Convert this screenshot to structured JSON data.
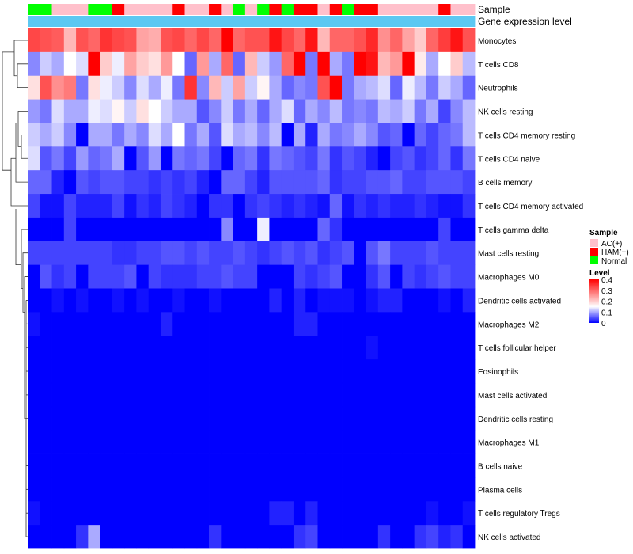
{
  "chart_data": {
    "type": "heatmap",
    "colormap": {
      "low": "#0000ff",
      "mid": "#ffffff",
      "high": "#ff0000",
      "min": 0,
      "mid_value": 0.15,
      "max": 0.4
    },
    "annotation_labels": [
      "Sample",
      "Gene expression level"
    ],
    "sample_annotation": [
      "Normal",
      "Normal",
      "AC(+)",
      "AC(+)",
      "AC(+)",
      "Normal",
      "Normal",
      "HAM(+)",
      "AC(+)",
      "AC(+)",
      "AC(+)",
      "AC(+)",
      "HAM(+)",
      "AC(+)",
      "AC(+)",
      "HAM(+)",
      "AC(+)",
      "Normal",
      "AC(+)",
      "Normal",
      "HAM(+)",
      "Normal",
      "HAM(+)",
      "HAM(+)",
      "AC(+)",
      "HAM(+)",
      "Normal",
      "HAM(+)",
      "HAM(+)",
      "AC(+)",
      "AC(+)",
      "AC(+)",
      "AC(+)",
      "AC(+)",
      "HAM(+)",
      "AC(+)",
      "AC(+)"
    ],
    "expression_annotation": "Gene expression level",
    "rows": [
      {
        "label": "Monocytes",
        "values": [
          0.33,
          0.32,
          0.31,
          0.22,
          0.32,
          0.3,
          0.35,
          0.33,
          0.32,
          0.24,
          0.23,
          0.32,
          0.33,
          0.3,
          0.33,
          0.3,
          0.4,
          0.3,
          0.32,
          0.32,
          0.38,
          0.33,
          0.3,
          0.38,
          0.22,
          0.3,
          0.3,
          0.32,
          0.36,
          0.26,
          0.3,
          0.24,
          0.2,
          0.3,
          0.34,
          0.38,
          0.32
        ]
      },
      {
        "label": "T cells CD8",
        "values": [
          0.08,
          0.12,
          0.1,
          0.15,
          0.13,
          0.42,
          0.2,
          0.14,
          0.24,
          0.2,
          0.18,
          0.25,
          0.15,
          0.06,
          0.25,
          0.1,
          0.3,
          0.06,
          0.22,
          0.12,
          0.09,
          0.3,
          0.4,
          0.07,
          0.42,
          0.1,
          0.07,
          0.4,
          0.38,
          0.22,
          0.25,
          0.4,
          0.17,
          0.1,
          0.15,
          0.2,
          0.11
        ]
      },
      {
        "label": "Neutrophils",
        "values": [
          0.18,
          0.32,
          0.26,
          0.28,
          0.07,
          0.18,
          0.14,
          0.12,
          0.08,
          0.13,
          0.1,
          0.14,
          0.07,
          0.35,
          0.08,
          0.22,
          0.12,
          0.24,
          0.12,
          0.16,
          0.1,
          0.06,
          0.08,
          0.07,
          0.32,
          0.4,
          0.07,
          0.1,
          0.11,
          0.13,
          0.06,
          0.14,
          0.11,
          0.07,
          0.12,
          0.1,
          0.06
        ]
      },
      {
        "label": "NK cells resting",
        "values": [
          0.09,
          0.07,
          0.13,
          0.1,
          0.1,
          0.14,
          0.13,
          0.16,
          0.12,
          0.18,
          0.15,
          0.12,
          0.1,
          0.1,
          0.05,
          0.08,
          0.12,
          0.07,
          0.1,
          0.06,
          0.1,
          0.13,
          0.06,
          0.1,
          0.08,
          0.11,
          0.07,
          0.08,
          0.07,
          0.11,
          0.1,
          0.12,
          0.07,
          0.1,
          0.04,
          0.08,
          0.11
        ]
      },
      {
        "label": "T cells CD4 memory resting",
        "values": [
          0.12,
          0.1,
          0.12,
          0.08,
          0.0,
          0.1,
          0.1,
          0.07,
          0.1,
          0.08,
          0.13,
          0.1,
          0.15,
          0.07,
          0.1,
          0.05,
          0.13,
          0.1,
          0.11,
          0.08,
          0.11,
          0.0,
          0.1,
          0.02,
          0.1,
          0.07,
          0.08,
          0.1,
          0.08,
          0.05,
          0.06,
          0.0,
          0.06,
          0.04,
          0.06,
          0.07,
          0.11
        ]
      },
      {
        "label": "T cells CD4 naive",
        "values": [
          0.13,
          0.05,
          0.07,
          0.04,
          0.09,
          0.06,
          0.07,
          0.1,
          0.0,
          0.05,
          0.09,
          0.0,
          0.07,
          0.06,
          0.07,
          0.04,
          0.0,
          0.06,
          0.07,
          0.03,
          0.07,
          0.06,
          0.05,
          0.04,
          0.07,
          0.03,
          0.05,
          0.04,
          0.02,
          0.0,
          0.04,
          0.05,
          0.03,
          0.04,
          0.06,
          0.03,
          0.07
        ]
      },
      {
        "label": "B cells memory",
        "values": [
          0.06,
          0.06,
          0.02,
          0.0,
          0.05,
          0.04,
          0.05,
          0.05,
          0.04,
          0.04,
          0.03,
          0.04,
          0.03,
          0.04,
          0.02,
          0.0,
          0.06,
          0.06,
          0.04,
          0.02,
          0.05,
          0.05,
          0.05,
          0.05,
          0.06,
          0.03,
          0.04,
          0.04,
          0.05,
          0.05,
          0.06,
          0.04,
          0.04,
          0.05,
          0.05,
          0.05,
          0.04
        ]
      },
      {
        "label": "T cells CD4 memory activated",
        "values": [
          0.04,
          0.01,
          0.01,
          0.04,
          0.02,
          0.02,
          0.02,
          0.04,
          0.01,
          0.03,
          0.02,
          0.04,
          0.03,
          0.02,
          0.0,
          0.03,
          0.03,
          0.0,
          0.03,
          0.04,
          0.03,
          0.02,
          0.03,
          0.02,
          0.01,
          0.06,
          0.01,
          0.03,
          0.02,
          0.03,
          0.02,
          0.02,
          0.03,
          0.02,
          0.01,
          0.01,
          0.03
        ]
      },
      {
        "label": "T cells gamma delta",
        "values": [
          0.0,
          0.0,
          0.0,
          0.04,
          0.0,
          0.0,
          0.0,
          0.0,
          0.0,
          0.0,
          0.0,
          0.0,
          0.0,
          0.0,
          0.0,
          0.0,
          0.08,
          0.0,
          0.0,
          0.14,
          0.0,
          0.0,
          0.0,
          0.0,
          0.06,
          0.03,
          0.0,
          0.0,
          0.0,
          0.0,
          0.0,
          0.0,
          0.0,
          0.0,
          0.04,
          0.0,
          0.0
        ]
      },
      {
        "label": "Mast cells resting",
        "values": [
          0.04,
          0.04,
          0.04,
          0.04,
          0.04,
          0.04,
          0.04,
          0.03,
          0.03,
          0.04,
          0.04,
          0.05,
          0.05,
          0.04,
          0.05,
          0.04,
          0.04,
          0.05,
          0.04,
          0.03,
          0.04,
          0.05,
          0.04,
          0.05,
          0.03,
          0.04,
          0.05,
          0.0,
          0.05,
          0.07,
          0.04,
          0.04,
          0.04,
          0.05,
          0.04,
          0.04,
          0.04
        ]
      },
      {
        "label": "Macrophages M0",
        "values": [
          0.0,
          0.05,
          0.03,
          0.04,
          0.0,
          0.04,
          0.04,
          0.04,
          0.05,
          0.0,
          0.04,
          0.03,
          0.03,
          0.03,
          0.04,
          0.04,
          0.05,
          0.04,
          0.04,
          0.0,
          0.0,
          0.0,
          0.04,
          0.03,
          0.04,
          0.05,
          0.0,
          0.0,
          0.03,
          0.05,
          0.0,
          0.04,
          0.03,
          0.04,
          0.05,
          0.04,
          0.04
        ]
      },
      {
        "label": "Dendritic cells activated",
        "values": [
          0.0,
          0.0,
          0.01,
          0.0,
          0.01,
          0.0,
          0.0,
          0.01,
          0.0,
          0.01,
          0.0,
          0.0,
          0.01,
          0.0,
          0.0,
          0.01,
          0.0,
          0.0,
          0.0,
          0.0,
          0.02,
          0.0,
          0.02,
          0.0,
          0.01,
          0.01,
          0.01,
          0.0,
          0.01,
          0.02,
          0.02,
          0.0,
          0.0,
          0.0,
          0.01,
          0.0,
          0.02
        ]
      },
      {
        "label": "Macrophages M2",
        "values": [
          0.01,
          0.0,
          0.0,
          0.0,
          0.0,
          0.0,
          0.0,
          0.0,
          0.0,
          0.0,
          0.0,
          0.02,
          0.0,
          0.0,
          0.0,
          0.0,
          0.0,
          0.0,
          0.0,
          0.0,
          0.0,
          0.0,
          0.02,
          0.02,
          0.0,
          0.0,
          0.0,
          0.0,
          0.0,
          0.0,
          0.0,
          0.0,
          0.0,
          0.0,
          0.0,
          0.0,
          0.0
        ]
      },
      {
        "label": "T cells follicular helper",
        "values": [
          0.0,
          0.0,
          0.0,
          0.0,
          0.0,
          0.0,
          0.0,
          0.0,
          0.0,
          0.0,
          0.0,
          0.0,
          0.0,
          0.0,
          0.0,
          0.0,
          0.0,
          0.0,
          0.0,
          0.0,
          0.0,
          0.0,
          0.0,
          0.0,
          0.0,
          0.0,
          0.0,
          0.0,
          0.01,
          0.0,
          0.0,
          0.0,
          0.0,
          0.0,
          0.0,
          0.0,
          0.0
        ]
      },
      {
        "label": "Eosinophils",
        "values": [
          0.0,
          0.0,
          0.0,
          0.0,
          0.0,
          0.0,
          0.0,
          0.0,
          0.0,
          0.0,
          0.0,
          0.0,
          0.0,
          0.0,
          0.0,
          0.0,
          0.0,
          0.0,
          0.0,
          0.0,
          0.0,
          0.0,
          0.0,
          0.0,
          0.0,
          0.0,
          0.0,
          0.0,
          0.0,
          0.0,
          0.0,
          0.0,
          0.0,
          0.0,
          0.0,
          0.0,
          0.0
        ]
      },
      {
        "label": "Mast cells activated",
        "values": [
          0.0,
          0.0,
          0.0,
          0.0,
          0.0,
          0.0,
          0.0,
          0.0,
          0.0,
          0.0,
          0.0,
          0.0,
          0.0,
          0.0,
          0.0,
          0.0,
          0.0,
          0.0,
          0.0,
          0.0,
          0.0,
          0.0,
          0.0,
          0.0,
          0.0,
          0.0,
          0.0,
          0.0,
          0.0,
          0.0,
          0.0,
          0.0,
          0.0,
          0.0,
          0.0,
          0.0,
          0.0
        ]
      },
      {
        "label": "Dendritic cells resting",
        "values": [
          0.0,
          0.0,
          0.0,
          0.0,
          0.0,
          0.0,
          0.0,
          0.0,
          0.0,
          0.0,
          0.0,
          0.0,
          0.0,
          0.0,
          0.0,
          0.0,
          0.0,
          0.0,
          0.0,
          0.0,
          0.0,
          0.0,
          0.0,
          0.0,
          0.0,
          0.0,
          0.0,
          0.0,
          0.0,
          0.0,
          0.0,
          0.0,
          0.0,
          0.0,
          0.0,
          0.0,
          0.0
        ]
      },
      {
        "label": "Macrophages M1",
        "values": [
          0.0,
          0.0,
          0.0,
          0.0,
          0.0,
          0.0,
          0.0,
          0.0,
          0.0,
          0.0,
          0.0,
          0.0,
          0.0,
          0.0,
          0.0,
          0.0,
          0.0,
          0.0,
          0.0,
          0.0,
          0.0,
          0.0,
          0.0,
          0.0,
          0.0,
          0.0,
          0.0,
          0.0,
          0.0,
          0.0,
          0.0,
          0.0,
          0.0,
          0.0,
          0.0,
          0.0,
          0.0
        ]
      },
      {
        "label": "B cells naive",
        "values": [
          0.0,
          0.0,
          0.0,
          0.0,
          0.0,
          0.0,
          0.0,
          0.0,
          0.0,
          0.0,
          0.0,
          0.0,
          0.0,
          0.0,
          0.0,
          0.0,
          0.0,
          0.0,
          0.0,
          0.0,
          0.0,
          0.0,
          0.0,
          0.0,
          0.0,
          0.0,
          0.0,
          0.0,
          0.0,
          0.0,
          0.0,
          0.0,
          0.0,
          0.0,
          0.0,
          0.0,
          0.0
        ]
      },
      {
        "label": "Plasma cells",
        "values": [
          0.0,
          0.0,
          0.0,
          0.0,
          0.0,
          0.0,
          0.0,
          0.0,
          0.0,
          0.0,
          0.0,
          0.0,
          0.0,
          0.0,
          0.0,
          0.0,
          0.0,
          0.0,
          0.0,
          0.0,
          0.0,
          0.0,
          0.0,
          0.0,
          0.0,
          0.0,
          0.0,
          0.0,
          0.0,
          0.0,
          0.0,
          0.0,
          0.0,
          0.0,
          0.0,
          0.0,
          0.0
        ]
      },
      {
        "label": "T cells regulatory  Tregs",
        "values": [
          0.01,
          0.0,
          0.0,
          0.0,
          0.0,
          0.0,
          0.0,
          0.0,
          0.0,
          0.0,
          0.0,
          0.0,
          0.0,
          0.0,
          0.0,
          0.0,
          0.0,
          0.0,
          0.0,
          0.0,
          0.02,
          0.02,
          0.0,
          0.02,
          0.0,
          0.0,
          0.0,
          0.0,
          0.0,
          0.0,
          0.0,
          0.0,
          0.0,
          0.01,
          0.0,
          0.0,
          0.01
        ]
      },
      {
        "label": "NK cells activated",
        "values": [
          0.0,
          0.0,
          0.0,
          0.0,
          0.03,
          0.1,
          0.0,
          0.0,
          0.0,
          0.0,
          0.0,
          0.0,
          0.0,
          0.0,
          0.0,
          0.03,
          0.0,
          0.0,
          0.0,
          0.0,
          0.0,
          0.0,
          0.03,
          0.04,
          0.0,
          0.0,
          0.0,
          0.0,
          0.0,
          0.03,
          0.0,
          0.0,
          0.03,
          0.04,
          0.02,
          0.03,
          0.0
        ]
      }
    ],
    "legend_sample": {
      "title": "Sample",
      "entries": [
        {
          "label": "AC(+)",
          "color": "#ffc0cb"
        },
        {
          "label": "HAM(+)",
          "color": "#ff0000"
        },
        {
          "label": "Normal",
          "color": "#00ff00"
        }
      ]
    },
    "expression_color": "#5cc8f2",
    "legend_level": {
      "title": "Level",
      "ticks": [
        "0.4",
        "0.3",
        "0.2",
        "0.1",
        "0"
      ],
      "tick_values": [
        0.4,
        0.3,
        0.2,
        0.1,
        0
      ]
    }
  }
}
